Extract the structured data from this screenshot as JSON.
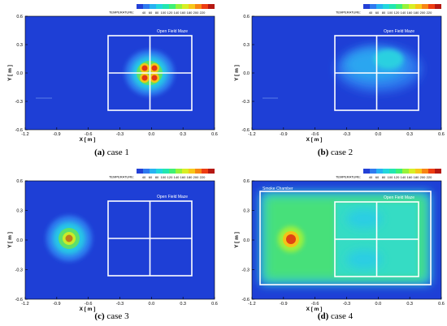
{
  "colorbar": {
    "label": "TEMPERATURE:",
    "ticks": [
      "40",
      "60",
      "80",
      "100",
      "120",
      "140",
      "160",
      "180",
      "200",
      "220"
    ],
    "colors": [
      "#2340d6",
      "#2f7bf0",
      "#27b3f2",
      "#22d7dd",
      "#22e6b0",
      "#3ff075",
      "#97f23a",
      "#d8ee24",
      "#f7c719",
      "#f88614",
      "#ee3d12",
      "#b51812"
    ]
  },
  "axes": {
    "xlabel": "X [ m ]",
    "ylabel": "Y [ m ]",
    "xticks": [
      "-1.2",
      "-0.9",
      "-0.6",
      "-0.3",
      "0.0",
      "0.3",
      "0.6"
    ],
    "yticks": [
      "0.6",
      "0.3",
      "0.0",
      "-0.3",
      "-0.6"
    ]
  },
  "panels": [
    {
      "letter": "(a)",
      "case": "case 1",
      "maze_label": "Open Field Maze",
      "chamber_label": ""
    },
    {
      "letter": "(b)",
      "case": "case 2",
      "maze_label": "Open Field Maze",
      "chamber_label": ""
    },
    {
      "letter": "(c)",
      "case": "case 3",
      "maze_label": "Open Field Maze",
      "chamber_label": ""
    },
    {
      "letter": "(d)",
      "case": "case 4",
      "maze_label": "Open Field Maze",
      "chamber_label": "Smoke Chamber"
    }
  ],
  "chart_data": [
    {
      "type": "heatmap",
      "title": "",
      "xlabel": "X [ m ]",
      "ylabel": "Y [ m ]",
      "xlim": [
        -1.2,
        0.6
      ],
      "ylim": [
        -0.6,
        0.6
      ],
      "annotations": [
        "Open Field Maze"
      ],
      "source_center": [
        0.0,
        0.0
      ],
      "peak_temperature": 220
    },
    {
      "type": "heatmap",
      "title": "",
      "xlabel": "X [ m ]",
      "ylabel": "Y [ m ]",
      "xlim": [
        -1.2,
        0.6
      ],
      "ylim": [
        -0.6,
        0.6
      ],
      "annotations": [
        "Open Field Maze"
      ],
      "source_center": [
        0.05,
        0.05
      ],
      "peak_temperature": 80
    },
    {
      "type": "heatmap",
      "title": "",
      "xlabel": "X [ m ]",
      "ylabel": "Y [ m ]",
      "xlim": [
        -1.2,
        0.6
      ],
      "ylim": [
        -0.6,
        0.6
      ],
      "annotations": [
        "Open Field Maze"
      ],
      "source_center": [
        -0.78,
        0.0
      ],
      "peak_temperature": 180
    },
    {
      "type": "heatmap",
      "title": "",
      "xlabel": "X [ m ]",
      "ylabel": "Y [ m ]",
      "xlim": [
        -1.2,
        0.6
      ],
      "ylim": [
        -0.6,
        0.6
      ],
      "annotations": [
        "Smoke Chamber",
        "Open Field Maze"
      ],
      "source_center": [
        -0.8,
        0.0
      ],
      "peak_temperature": 220
    }
  ]
}
